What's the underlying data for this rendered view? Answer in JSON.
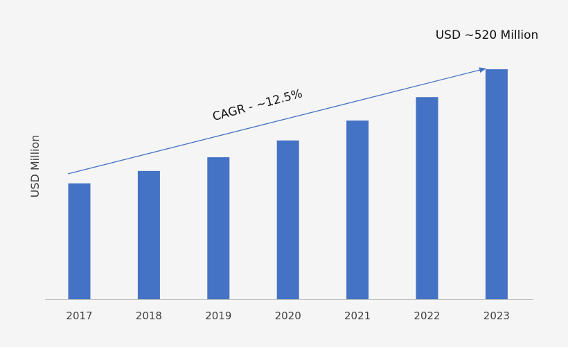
{
  "chart_data": {
    "type": "bar",
    "title": "",
    "xlabel": "",
    "ylabel": "USD Million",
    "categories": [
      "2017",
      "2018",
      "2019",
      "2020",
      "2021",
      "2022",
      "2023"
    ],
    "values": [
      262,
      290,
      321,
      359,
      404,
      457,
      520
    ],
    "ylim": [
      0,
      520
    ],
    "grid": false,
    "bar_color": "#4472c4",
    "annotations": {
      "end_value": "USD ~520 Million",
      "cagr": "CAGR - ~12.5%"
    }
  }
}
